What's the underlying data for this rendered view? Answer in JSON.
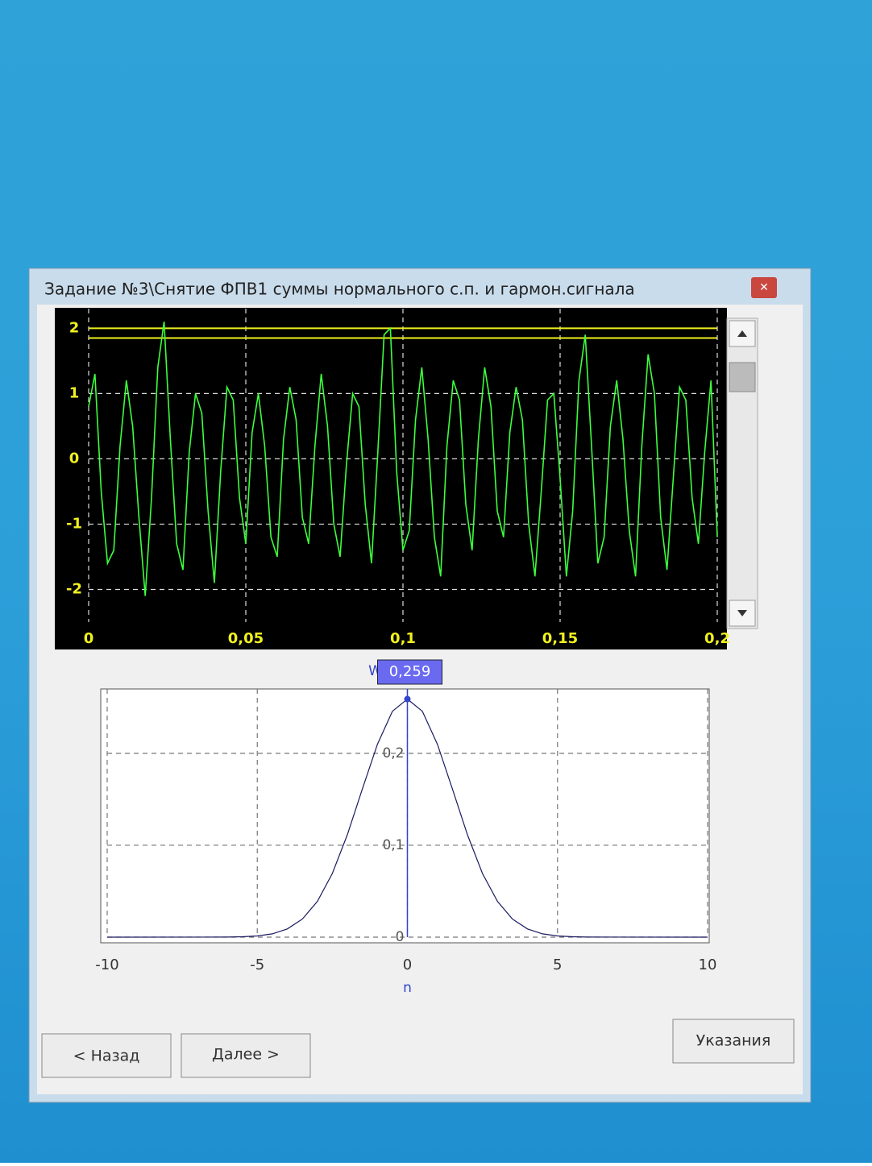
{
  "window": {
    "title": "Задание №3\\Снятие ФПВ1 суммы нормального с.п. и гармон.сигнала"
  },
  "chart_data": [
    {
      "type": "line",
      "x": [
        0,
        0.002,
        0.004,
        0.006,
        0.008,
        0.01,
        0.012,
        0.014,
        0.016,
        0.018,
        0.02,
        0.022,
        0.024,
        0.026,
        0.028,
        0.03,
        0.032,
        0.034,
        0.036,
        0.038,
        0.04,
        0.042,
        0.044,
        0.046,
        0.048,
        0.05,
        0.052,
        0.054,
        0.056,
        0.058,
        0.06,
        0.062,
        0.064,
        0.066,
        0.068,
        0.07,
        0.072,
        0.074,
        0.076,
        0.078,
        0.08,
        0.082,
        0.084,
        0.086,
        0.088,
        0.09,
        0.092,
        0.094,
        0.096,
        0.098,
        0.1,
        0.102,
        0.104,
        0.106,
        0.108,
        0.11,
        0.112,
        0.114,
        0.116,
        0.118,
        0.12,
        0.122,
        0.124,
        0.126,
        0.128,
        0.13,
        0.132,
        0.134,
        0.136,
        0.138,
        0.14,
        0.142,
        0.144,
        0.146,
        0.148,
        0.15,
        0.152,
        0.154,
        0.156,
        0.158,
        0.16,
        0.162,
        0.164,
        0.166,
        0.168,
        0.17,
        0.172,
        0.174,
        0.176,
        0.178,
        0.18,
        0.182,
        0.184,
        0.186,
        0.188,
        0.19,
        0.192,
        0.194,
        0.196,
        0.198,
        0.2
      ],
      "series": [
        {
          "color": "#3cff3c",
          "values": [
            0.8,
            1.3,
            -0.5,
            -1.6,
            -1.4,
            0.2,
            1.2,
            0.5,
            -0.9,
            -2.1,
            -0.6,
            1.4,
            2.1,
            0.3,
            -1.3,
            -1.7,
            0.1,
            1.0,
            0.7,
            -0.8,
            -1.9,
            -0.2,
            1.1,
            0.9,
            -0.6,
            -1.3,
            0.4,
            1.0,
            0.2,
            -1.2,
            -1.5,
            0.3,
            1.1,
            0.6,
            -0.9,
            -1.3,
            0.2,
            1.3,
            0.5,
            -1.0,
            -1.5,
            -0.1,
            1.0,
            0.8,
            -0.7,
            -1.6,
            0.1,
            1.9,
            2.0,
            -0.2,
            -1.4,
            -1.1,
            0.6,
            1.4,
            0.3,
            -1.2,
            -1.8,
            0.2,
            1.2,
            0.9,
            -0.7,
            -1.4,
            0.3,
            1.4,
            0.8,
            -0.8,
            -1.2,
            0.4,
            1.1,
            0.6,
            -1.0,
            -1.8,
            -0.5,
            0.9,
            1.0,
            -0.3,
            -1.8,
            -0.8,
            1.2,
            1.9,
            0.2,
            -1.6,
            -1.2,
            0.5,
            1.2,
            0.3,
            -1.1,
            -1.8,
            0.2,
            1.6,
            1.0,
            -0.9,
            -1.7,
            -0.3,
            1.1,
            0.9,
            -0.6,
            -1.3,
            0.1,
            1.2,
            -1.2
          ]
        }
      ],
      "hlines": [
        {
          "value": 2.0,
          "color": "#f0f020"
        },
        {
          "value": 1.85,
          "color": "#f0f020"
        }
      ],
      "xlim": [
        0,
        0.2
      ],
      "xticks": [
        0,
        {
          "value": 0.05,
          "label": "0,05"
        },
        {
          "value": 0.1,
          "label": "0,1"
        },
        {
          "value": 0.15,
          "label": "0,15"
        },
        {
          "value": 0.2,
          "label": "0,2"
        }
      ],
      "ylim": [
        -2.5,
        2.3
      ],
      "yticks": [
        2,
        1,
        0,
        -1,
        -2
      ],
      "grid": true
    },
    {
      "type": "line",
      "x_label": "n",
      "y_label": "W",
      "x": [
        -10,
        -6,
        -5.5,
        -5,
        -4.5,
        -4,
        -3.5,
        -3,
        -2.5,
        -2,
        -1.5,
        -1,
        -0.5,
        0,
        0.5,
        1,
        1.5,
        2,
        2.5,
        3,
        3.5,
        4,
        4.5,
        5,
        5.5,
        6,
        10
      ],
      "series": [
        {
          "color": "#1a1a60",
          "values": [
            0,
            0.0001,
            0.0004,
            0.0013,
            0.0036,
            0.0089,
            0.0196,
            0.0388,
            0.0693,
            0.1114,
            0.1611,
            0.2098,
            0.2457,
            0.259,
            0.2457,
            0.2098,
            0.1611,
            0.1114,
            0.0693,
            0.0388,
            0.0196,
            0.0089,
            0.0036,
            0.0013,
            0.0004,
            0.0001,
            0
          ]
        }
      ],
      "annotation": {
        "x": 0,
        "value": 0.259,
        "label": "0,259"
      },
      "xlim": [
        -10,
        10
      ],
      "xticks": [
        -10,
        -5,
        0,
        5,
        10
      ],
      "ylim": [
        0,
        0.27
      ],
      "yticks": [
        0,
        {
          "value": 0.1,
          "label": "0,1"
        },
        {
          "value": 0.2,
          "label": "0,2"
        }
      ],
      "grid": true
    }
  ],
  "buttons": {
    "back": "< Назад",
    "next": "Далее >",
    "help": "Указания"
  }
}
